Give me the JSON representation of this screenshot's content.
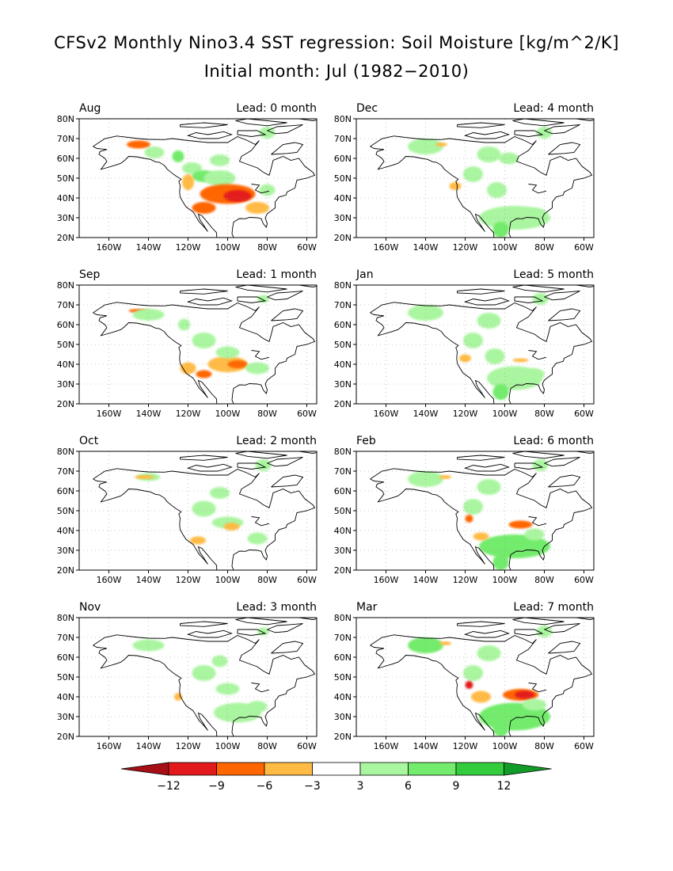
{
  "title": "CFSv2 Monthly Nino3.4 SST regression: Soil Moisture [kg/m^2/K]",
  "subtitle": "Initial month: Jul (1982−2010)",
  "chart_data": {
    "type": "heatmap",
    "map_region": "North America",
    "lat_ticks": [
      "80N",
      "70N",
      "60N",
      "50N",
      "40N",
      "30N",
      "20N"
    ],
    "lon_ticks": [
      "160W",
      "140W",
      "120W",
      "100W",
      "80W",
      "60W"
    ],
    "lat_range": [
      20,
      80
    ],
    "lon_range": [
      -175,
      -55
    ],
    "grid": "dotted",
    "panels": [
      {
        "month": "Aug",
        "lead": "Lead: 0 month",
        "blobs": [
          [
            -145,
            67,
            6,
            2,
            -7
          ],
          [
            -137,
            63,
            5,
            3,
            4
          ],
          [
            -125,
            61,
            3,
            3,
            6
          ],
          [
            -118,
            55,
            5,
            3,
            3
          ],
          [
            -112,
            51,
            6,
            3,
            7
          ],
          [
            -104,
            50,
            8,
            4,
            5
          ],
          [
            -100,
            42,
            14,
            5,
            -7
          ],
          [
            -95,
            41,
            7,
            3,
            -11
          ],
          [
            -112,
            35,
            6,
            3,
            -9
          ],
          [
            -120,
            48,
            3,
            4,
            -5
          ],
          [
            -85,
            35,
            6,
            3,
            -5
          ],
          [
            -80,
            44,
            4,
            3,
            4
          ],
          [
            -104,
            59,
            5,
            3,
            5
          ],
          [
            -80,
            73,
            4,
            3,
            3
          ]
        ]
      },
      {
        "month": "Dec",
        "lead": "Lead: 4 month",
        "blobs": [
          [
            -140,
            66,
            9,
            4,
            5
          ],
          [
            -108,
            62,
            6,
            4,
            5
          ],
          [
            -98,
            60,
            5,
            3,
            4
          ],
          [
            -116,
            52,
            5,
            4,
            4
          ],
          [
            -104,
            44,
            5,
            4,
            3
          ],
          [
            -95,
            30,
            18,
            6,
            5
          ],
          [
            -102,
            24,
            4,
            4,
            7
          ],
          [
            -85,
            32,
            6,
            3,
            4
          ],
          [
            -125,
            46,
            3,
            2,
            -4
          ],
          [
            -132,
            67,
            3,
            1,
            -4
          ],
          [
            -80,
            73,
            4,
            3,
            3
          ]
        ]
      },
      {
        "month": "Sep",
        "lead": "Lead: 1 month",
        "blobs": [
          [
            -145,
            67,
            5,
            1,
            -7
          ],
          [
            -140,
            65,
            8,
            3,
            5
          ],
          [
            -122,
            60,
            3,
            3,
            5
          ],
          [
            -112,
            52,
            6,
            4,
            5
          ],
          [
            -100,
            40,
            10,
            4,
            -6
          ],
          [
            -95,
            40,
            5,
            2,
            -9
          ],
          [
            -112,
            35,
            4,
            2,
            -9
          ],
          [
            -120,
            38,
            4,
            3,
            -5
          ],
          [
            -85,
            38,
            6,
            3,
            4
          ],
          [
            -100,
            46,
            6,
            3,
            4
          ],
          [
            -82,
            73,
            3,
            2,
            3
          ]
        ]
      },
      {
        "month": "Jan",
        "lead": "Lead: 5 month",
        "blobs": [
          [
            -140,
            66,
            9,
            4,
            5
          ],
          [
            -108,
            62,
            6,
            4,
            5
          ],
          [
            -116,
            52,
            5,
            4,
            4
          ],
          [
            -105,
            44,
            5,
            4,
            3
          ],
          [
            -95,
            33,
            14,
            6,
            5
          ],
          [
            -102,
            26,
            4,
            4,
            8
          ],
          [
            -120,
            43,
            3,
            2,
            -4
          ],
          [
            -92,
            42,
            4,
            1,
            -4
          ],
          [
            -85,
            35,
            5,
            3,
            4
          ],
          [
            -82,
            73,
            4,
            3,
            3
          ]
        ]
      },
      {
        "month": "Oct",
        "lead": "Lead: 2 month",
        "blobs": [
          [
            -140,
            67,
            6,
            2,
            4
          ],
          [
            -142,
            67,
            5,
            1,
            -4
          ],
          [
            -112,
            51,
            6,
            4,
            4
          ],
          [
            -100,
            44,
            8,
            3,
            3
          ],
          [
            -98,
            42,
            4,
            2,
            -4
          ],
          [
            -115,
            35,
            4,
            2,
            -4
          ],
          [
            -85,
            36,
            5,
            3,
            3
          ],
          [
            -104,
            59,
            5,
            3,
            3
          ],
          [
            -82,
            73,
            4,
            3,
            3
          ]
        ]
      },
      {
        "month": "Feb",
        "lead": "Lead: 6 month",
        "blobs": [
          [
            -140,
            66,
            9,
            4,
            5
          ],
          [
            -108,
            62,
            6,
            4,
            5
          ],
          [
            -116,
            52,
            5,
            4,
            4
          ],
          [
            -95,
            32,
            18,
            6,
            6
          ],
          [
            -102,
            24,
            4,
            4,
            8
          ],
          [
            -118,
            46,
            2,
            2,
            -9
          ],
          [
            -92,
            43,
            6,
            2,
            -7
          ],
          [
            -112,
            37,
            4,
            2,
            -4
          ],
          [
            -85,
            38,
            5,
            3,
            5
          ],
          [
            -130,
            67,
            3,
            1,
            -4
          ],
          [
            -82,
            73,
            4,
            3,
            3
          ]
        ]
      },
      {
        "month": "Nov",
        "lead": "Lead: 3 month",
        "blobs": [
          [
            -140,
            66,
            8,
            3,
            5
          ],
          [
            -112,
            52,
            6,
            4,
            4
          ],
          [
            -100,
            44,
            6,
            3,
            3
          ],
          [
            -95,
            32,
            12,
            5,
            5
          ],
          [
            -125,
            40,
            2,
            2,
            -4
          ],
          [
            -85,
            35,
            5,
            3,
            4
          ],
          [
            -104,
            58,
            4,
            3,
            3
          ],
          [
            -82,
            73,
            3,
            2,
            3
          ]
        ]
      },
      {
        "month": "Mar",
        "lead": "Lead: 7 month",
        "blobs": [
          [
            -140,
            66,
            9,
            4,
            6
          ],
          [
            -108,
            62,
            6,
            4,
            5
          ],
          [
            -116,
            52,
            5,
            4,
            5
          ],
          [
            -95,
            30,
            18,
            7,
            7
          ],
          [
            -102,
            24,
            4,
            4,
            8
          ],
          [
            -118,
            46,
            2,
            2,
            -11
          ],
          [
            -92,
            41,
            9,
            3,
            -7
          ],
          [
            -90,
            41,
            5,
            2,
            -11
          ],
          [
            -112,
            40,
            5,
            3,
            -5
          ],
          [
            -85,
            36,
            6,
            3,
            5
          ],
          [
            -130,
            67,
            3,
            1,
            -4
          ],
          [
            -80,
            73,
            4,
            3,
            3
          ]
        ]
      }
    ],
    "colorbar": {
      "labels": [
        "−12",
        "−9",
        "−6",
        "−3",
        "3",
        "6",
        "9",
        "12"
      ],
      "levels": [
        -12,
        -9,
        -6,
        -3,
        3,
        6,
        9,
        12
      ],
      "colors": [
        "#a50f15",
        "#e31a1c",
        "#ff6600",
        "#ffbb44",
        "#ffffff",
        "#aaf5a0",
        "#73eb6c",
        "#33cc3c",
        "#119c28"
      ]
    }
  }
}
